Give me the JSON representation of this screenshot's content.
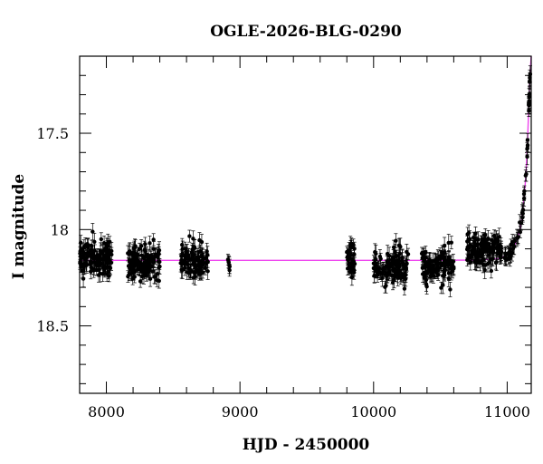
{
  "chart_data": {
    "type": "scatter",
    "title": "OGLE-2026-BLG-0290",
    "xlabel": "HJD - 2450000",
    "ylabel": "I magnitude",
    "xlim": [
      7800,
      11180
    ],
    "ylim": [
      18.85,
      17.1
    ],
    "y_inverted": true,
    "x_ticks": [
      8000,
      9000,
      10000,
      11000
    ],
    "x_tick_labels": [
      "8000",
      "9000",
      "10000",
      "11000"
    ],
    "y_ticks": [
      17.5,
      18,
      18.5
    ],
    "y_tick_labels": [
      "17.5",
      "18",
      "18.5"
    ],
    "grid": false,
    "legend": "none",
    "colors": {
      "points": "#000000",
      "model": "#ee44ee",
      "frame": "#000000"
    },
    "model": {
      "name": "",
      "baseline": 18.16,
      "x": [
        7800,
        8500,
        9000,
        9500,
        10000,
        10500,
        10800,
        10950,
        11000,
        11050,
        11080,
        11100,
        11120,
        11140,
        11150,
        11160,
        11170,
        11180
      ],
      "y": [
        18.16,
        18.16,
        18.16,
        18.16,
        18.16,
        18.16,
        18.158,
        18.15,
        18.13,
        18.09,
        18.04,
        17.98,
        17.88,
        17.72,
        17.58,
        17.4,
        17.2,
        17.1
      ]
    },
    "seasons": [
      {
        "x_start": 7800,
        "x_end": 8040,
        "mag_mean": 18.15,
        "scatter": 0.045,
        "n": 130
      },
      {
        "x_start": 8160,
        "x_end": 8400,
        "mag_mean": 18.17,
        "scatter": 0.045,
        "n": 130
      },
      {
        "x_start": 8555,
        "x_end": 8760,
        "mag_mean": 18.16,
        "scatter": 0.04,
        "n": 100
      },
      {
        "x_start": 8910,
        "x_end": 8930,
        "mag_mean": 18.18,
        "scatter": 0.03,
        "n": 6
      },
      {
        "x_start": 9800,
        "x_end": 9860,
        "mag_mean": 18.16,
        "scatter": 0.04,
        "n": 35
      },
      {
        "x_start": 10000,
        "x_end": 10260,
        "mag_mean": 18.19,
        "scatter": 0.045,
        "n": 120
      },
      {
        "x_start": 10360,
        "x_end": 10600,
        "mag_mean": 18.18,
        "scatter": 0.045,
        "n": 110
      },
      {
        "x_start": 10700,
        "x_end": 10960,
        "mag_mean": 18.11,
        "scatter": 0.04,
        "n": 140
      },
      {
        "x_start": 10980,
        "x_end": 11175,
        "mag_mean": null,
        "scatter": 0.02,
        "n": 60,
        "follows_model": true
      }
    ],
    "error_bar_half_width_mag": 0.035
  }
}
